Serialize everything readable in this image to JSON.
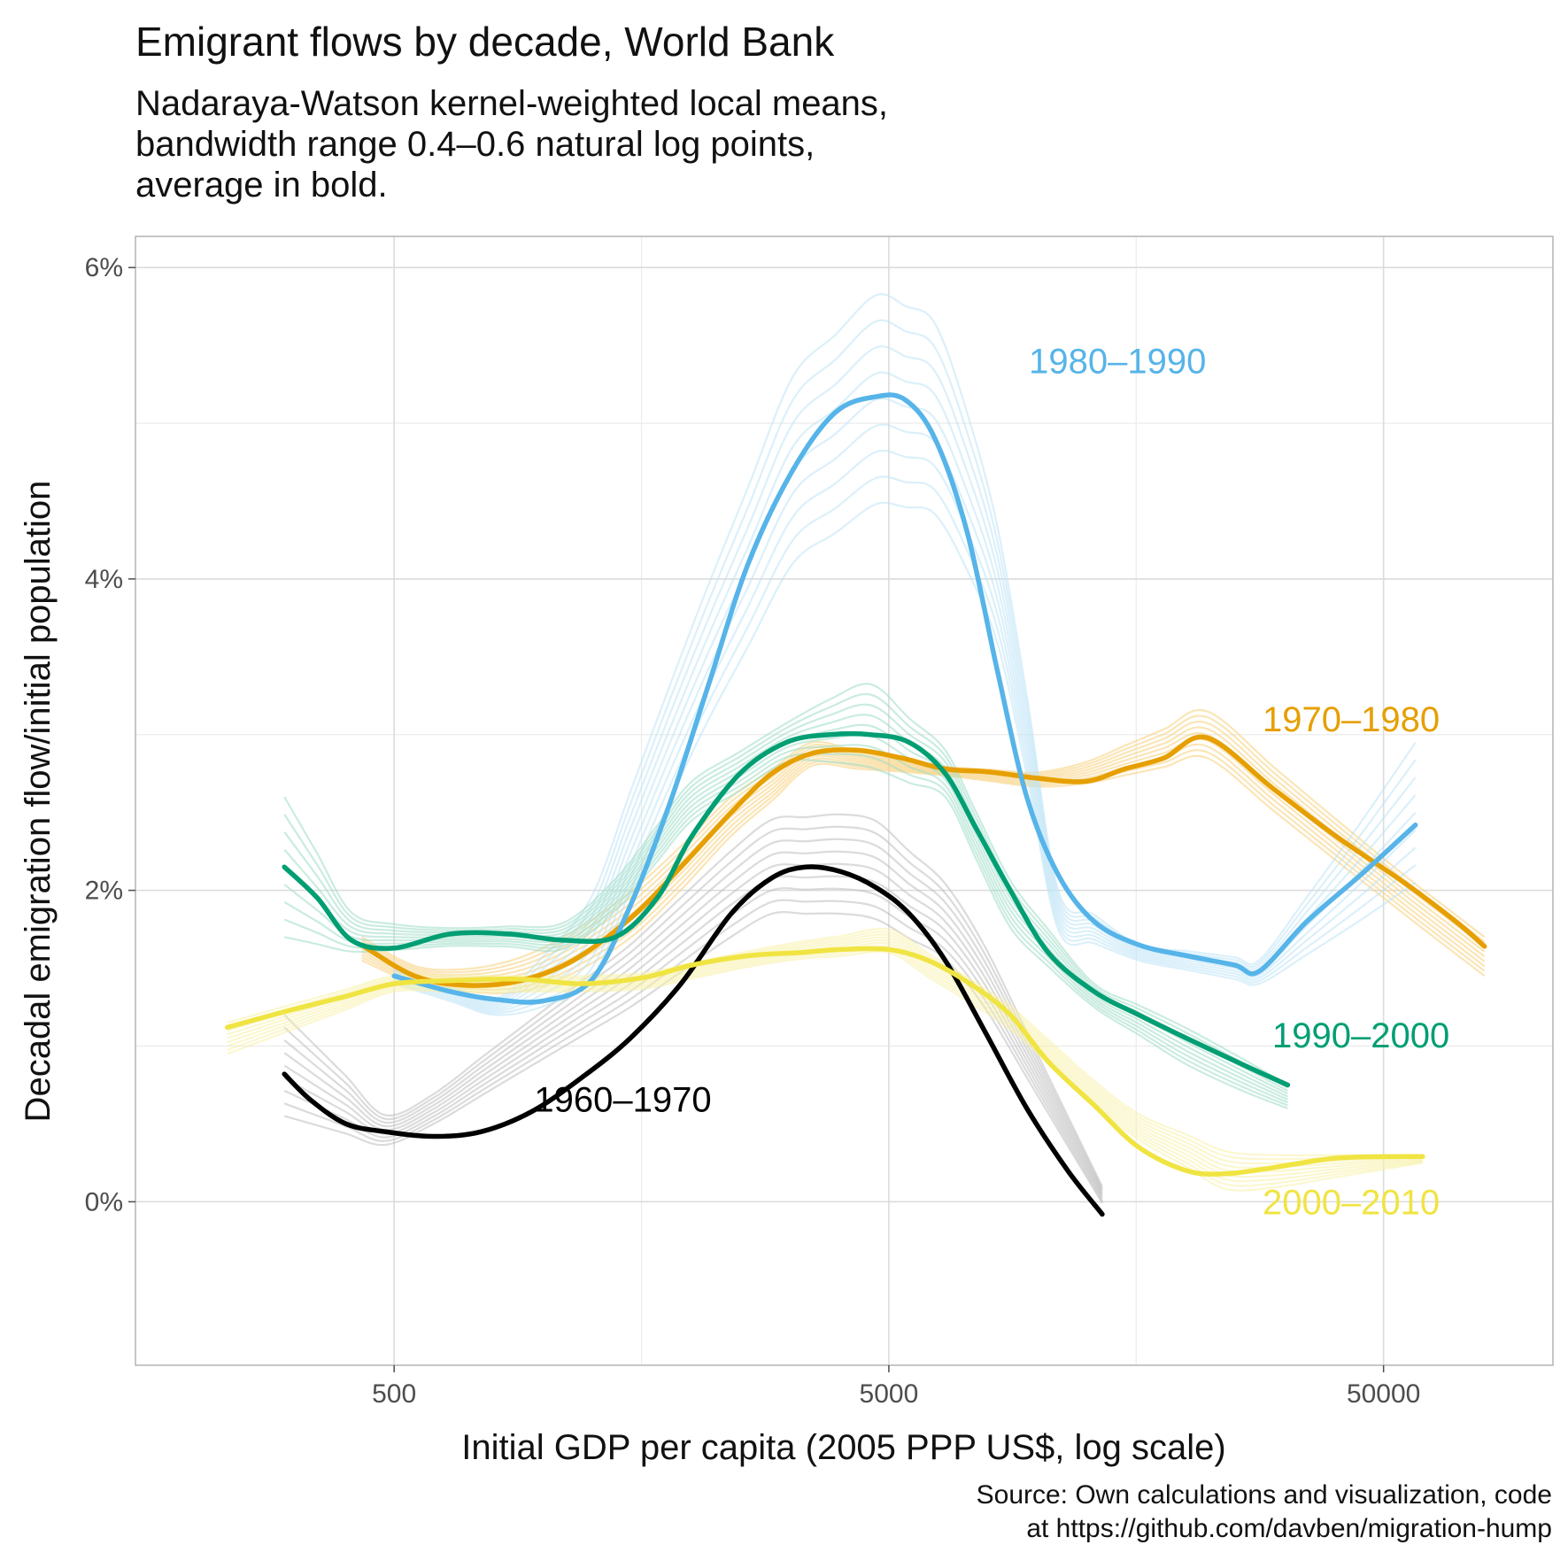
{
  "title": "Emigrant flows by decade, World Bank",
  "subtitle": [
    "Nadaraya-Watson kernel-weighted local means,",
    "bandwidth range 0.4–0.6 natural log points,",
    "average in bold."
  ],
  "caption": [
    "Source: Own calculations and visualization, code",
    "at https://github.com/davben/migration-hump"
  ],
  "chart_data": {
    "type": "line",
    "title": "Emigrant flows by decade, World Bank",
    "subtitle": "Nadaraya-Watson kernel-weighted local means, bandwidth range 0.4–0.6 natural log points, average in bold.",
    "xlabel": "Initial GDP per capita (2005 PPP US$, log scale)",
    "ylabel": "Decadal emigration flow/initial population",
    "x_scale": "log10",
    "x_ticks": [
      {
        "value": 500,
        "label": "500"
      },
      {
        "value": 5000,
        "label": "5000"
      },
      {
        "value": 50000,
        "label": "50000"
      }
    ],
    "y_ticks": [
      {
        "value": 0,
        "label": "0%"
      },
      {
        "value": 2,
        "label": "2%"
      },
      {
        "value": 4,
        "label": "4%"
      },
      {
        "value": 6,
        "label": "6%"
      }
    ],
    "xlim": [
      150,
      110000
    ],
    "ylim": [
      -1.05,
      6.2
    ],
    "grid": true,
    "legend": "direct labels on lines",
    "series": [
      {
        "name": "1960–1970",
        "color": "#000000",
        "band_color": "#bdbdbd",
        "label_pos": [
          1450,
          0.66
        ],
        "band_upper": [
          [
            300,
            1.2
          ],
          [
            500,
            0.5
          ],
          [
            1500,
            1.65
          ],
          [
            2800,
            2.45
          ],
          [
            4500,
            2.5
          ],
          [
            7000,
            1.95
          ],
          [
            15000,
            -0.2
          ]
        ],
        "band_lower": [
          [
            300,
            0.55
          ],
          [
            500,
            0.35
          ],
          [
            1500,
            1.25
          ],
          [
            2800,
            1.85
          ],
          [
            4500,
            1.85
          ],
          [
            7000,
            1.5
          ],
          [
            15000,
            -0.25
          ]
        ],
        "points": [
          [
            300,
            0.82
          ],
          [
            340,
            0.65
          ],
          [
            400,
            0.5
          ],
          [
            480,
            0.45
          ],
          [
            600,
            0.42
          ],
          [
            750,
            0.45
          ],
          [
            950,
            0.58
          ],
          [
            1200,
            0.8
          ],
          [
            1500,
            1.05
          ],
          [
            1900,
            1.4
          ],
          [
            2400,
            1.85
          ],
          [
            2900,
            2.08
          ],
          [
            3400,
            2.15
          ],
          [
            4000,
            2.12
          ],
          [
            4700,
            2.02
          ],
          [
            5500,
            1.85
          ],
          [
            6500,
            1.55
          ],
          [
            7800,
            1.1
          ],
          [
            9500,
            0.6
          ],
          [
            11500,
            0.2
          ],
          [
            13500,
            -0.08
          ]
        ]
      },
      {
        "name": "1970–1980",
        "color": "#e69f00",
        "band_color": "#f8cf7a",
        "label_pos": [
          43000,
          3.1
        ],
        "band_upper": [
          [
            430,
            1.7
          ],
          [
            600,
            1.45
          ],
          [
            1000,
            1.6
          ],
          [
            1600,
            2.05
          ],
          [
            2400,
            2.6
          ],
          [
            3500,
            2.95
          ],
          [
            6000,
            2.8
          ],
          [
            11000,
            2.75
          ],
          [
            22000,
            3.15
          ],
          [
            50000,
            2.2
          ],
          [
            80000,
            1.7
          ]
        ],
        "band_lower": [
          [
            430,
            1.55
          ],
          [
            600,
            1.35
          ],
          [
            1000,
            1.35
          ],
          [
            1600,
            1.75
          ],
          [
            2400,
            2.35
          ],
          [
            3500,
            2.8
          ],
          [
            6000,
            2.75
          ],
          [
            11000,
            2.65
          ],
          [
            22000,
            2.85
          ],
          [
            50000,
            1.95
          ],
          [
            80000,
            1.45
          ]
        ],
        "points": [
          [
            430,
            1.65
          ],
          [
            550,
            1.45
          ],
          [
            700,
            1.39
          ],
          [
            900,
            1.42
          ],
          [
            1150,
            1.55
          ],
          [
            1500,
            1.82
          ],
          [
            1900,
            2.15
          ],
          [
            2400,
            2.5
          ],
          [
            2900,
            2.75
          ],
          [
            3500,
            2.88
          ],
          [
            4300,
            2.9
          ],
          [
            5300,
            2.85
          ],
          [
            6500,
            2.78
          ],
          [
            8000,
            2.76
          ],
          [
            10000,
            2.72
          ],
          [
            12500,
            2.7
          ],
          [
            15000,
            2.78
          ],
          [
            18000,
            2.85
          ],
          [
            22000,
            2.98
          ],
          [
            30000,
            2.65
          ],
          [
            40000,
            2.35
          ],
          [
            55000,
            2.05
          ],
          [
            70000,
            1.8
          ],
          [
            80000,
            1.64
          ]
        ]
      },
      {
        "name": "1980–1990",
        "color": "#56b4e9",
        "band_color": "#bde3f6",
        "label_pos": [
          14500,
          5.4
        ],
        "band_upper": [
          [
            500,
            1.5
          ],
          [
            800,
            1.3
          ],
          [
            1200,
            1.8
          ],
          [
            2000,
            3.7
          ],
          [
            3200,
            5.3
          ],
          [
            4800,
            5.85
          ],
          [
            6500,
            5.6
          ],
          [
            8500,
            4.2
          ],
          [
            11000,
            2.0
          ],
          [
            16000,
            1.65
          ],
          [
            28000,
            1.55
          ],
          [
            40000,
            2.2
          ],
          [
            58000,
            2.95
          ]
        ],
        "band_lower": [
          [
            500,
            1.4
          ],
          [
            800,
            1.2
          ],
          [
            1200,
            1.3
          ],
          [
            2000,
            2.9
          ],
          [
            3200,
            4.1
          ],
          [
            4800,
            4.5
          ],
          [
            6500,
            4.4
          ],
          [
            8500,
            3.5
          ],
          [
            11000,
            1.75
          ],
          [
            16000,
            1.55
          ],
          [
            28000,
            1.4
          ],
          [
            40000,
            1.7
          ],
          [
            58000,
            2.05
          ]
        ],
        "points": [
          [
            500,
            1.45
          ],
          [
            650,
            1.35
          ],
          [
            800,
            1.3
          ],
          [
            1000,
            1.29
          ],
          [
            1250,
            1.42
          ],
          [
            1500,
            1.9
          ],
          [
            1800,
            2.55
          ],
          [
            2150,
            3.3
          ],
          [
            2600,
            4.1
          ],
          [
            3200,
            4.7
          ],
          [
            3900,
            5.07
          ],
          [
            4700,
            5.17
          ],
          [
            5400,
            5.15
          ],
          [
            6200,
            4.9
          ],
          [
            7200,
            4.3
          ],
          [
            8300,
            3.4
          ],
          [
            9500,
            2.6
          ],
          [
            11000,
            2.1
          ],
          [
            13000,
            1.8
          ],
          [
            16000,
            1.65
          ],
          [
            20000,
            1.58
          ],
          [
            25000,
            1.52
          ],
          [
            28000,
            1.48
          ],
          [
            35000,
            1.8
          ],
          [
            45000,
            2.1
          ],
          [
            58000,
            2.42
          ]
        ]
      },
      {
        "name": "1990–2000",
        "color": "#009e73",
        "band_color": "#9fdcc6",
        "label_pos": [
          45000,
          1.07
        ],
        "band_upper": [
          [
            300,
            2.6
          ],
          [
            420,
            1.8
          ],
          [
            700,
            1.75
          ],
          [
            1200,
            1.8
          ],
          [
            2000,
            2.7
          ],
          [
            3200,
            3.1
          ],
          [
            4500,
            3.35
          ],
          [
            6500,
            2.9
          ],
          [
            9000,
            2.0
          ],
          [
            13000,
            1.4
          ],
          [
            22000,
            1.05
          ],
          [
            32000,
            0.75
          ]
        ],
        "band_lower": [
          [
            300,
            1.7
          ],
          [
            420,
            1.6
          ],
          [
            700,
            1.65
          ],
          [
            1200,
            1.62
          ],
          [
            2000,
            2.45
          ],
          [
            3200,
            2.85
          ],
          [
            4500,
            2.8
          ],
          [
            6500,
            2.6
          ],
          [
            9000,
            1.7
          ],
          [
            13000,
            1.25
          ],
          [
            22000,
            0.8
          ],
          [
            32000,
            0.6
          ]
        ],
        "points": [
          [
            300,
            2.15
          ],
          [
            350,
            1.95
          ],
          [
            410,
            1.68
          ],
          [
            500,
            1.63
          ],
          [
            650,
            1.72
          ],
          [
            850,
            1.72
          ],
          [
            1100,
            1.68
          ],
          [
            1400,
            1.7
          ],
          [
            1700,
            1.95
          ],
          [
            2000,
            2.35
          ],
          [
            2500,
            2.75
          ],
          [
            3100,
            2.95
          ],
          [
            3800,
            3.0
          ],
          [
            4600,
            3.0
          ],
          [
            5500,
            2.95
          ],
          [
            6500,
            2.75
          ],
          [
            7500,
            2.4
          ],
          [
            8800,
            2.0
          ],
          [
            10500,
            1.6
          ],
          [
            13000,
            1.35
          ],
          [
            16000,
            1.2
          ],
          [
            20000,
            1.05
          ],
          [
            26000,
            0.88
          ],
          [
            32000,
            0.75
          ]
        ]
      },
      {
        "name": "2000–2010",
        "color": "#f0e442",
        "band_color": "#f8f0a8",
        "label_pos": [
          43000,
          0.0
        ],
        "band_upper": [
          [
            230,
            1.15
          ],
          [
            500,
            1.45
          ],
          [
            1500,
            1.45
          ],
          [
            3000,
            1.65
          ],
          [
            5000,
            1.75
          ],
          [
            8500,
            1.3
          ],
          [
            15000,
            0.6
          ],
          [
            25000,
            0.3
          ],
          [
            60000,
            0.3
          ]
        ],
        "band_lower": [
          [
            230,
            0.95
          ],
          [
            500,
            1.35
          ],
          [
            1500,
            1.35
          ],
          [
            3000,
            1.55
          ],
          [
            5000,
            1.6
          ],
          [
            8500,
            1.15
          ],
          [
            15000,
            0.45
          ],
          [
            25000,
            0.05
          ],
          [
            60000,
            0.25
          ]
        ],
        "points": [
          [
            230,
            1.12
          ],
          [
            300,
            1.22
          ],
          [
            400,
            1.32
          ],
          [
            500,
            1.4
          ],
          [
            650,
            1.42
          ],
          [
            900,
            1.43
          ],
          [
            1200,
            1.4
          ],
          [
            1600,
            1.44
          ],
          [
            2000,
            1.52
          ],
          [
            2600,
            1.58
          ],
          [
            3300,
            1.6
          ],
          [
            4000,
            1.62
          ],
          [
            5000,
            1.62
          ],
          [
            6000,
            1.55
          ],
          [
            7300,
            1.4
          ],
          [
            8800,
            1.2
          ],
          [
            10500,
            0.9
          ],
          [
            13000,
            0.62
          ],
          [
            16000,
            0.35
          ],
          [
            20000,
            0.2
          ],
          [
            24000,
            0.18
          ],
          [
            30000,
            0.22
          ],
          [
            40000,
            0.28
          ],
          [
            55000,
            0.29
          ],
          [
            60000,
            0.29
          ]
        ]
      }
    ]
  }
}
